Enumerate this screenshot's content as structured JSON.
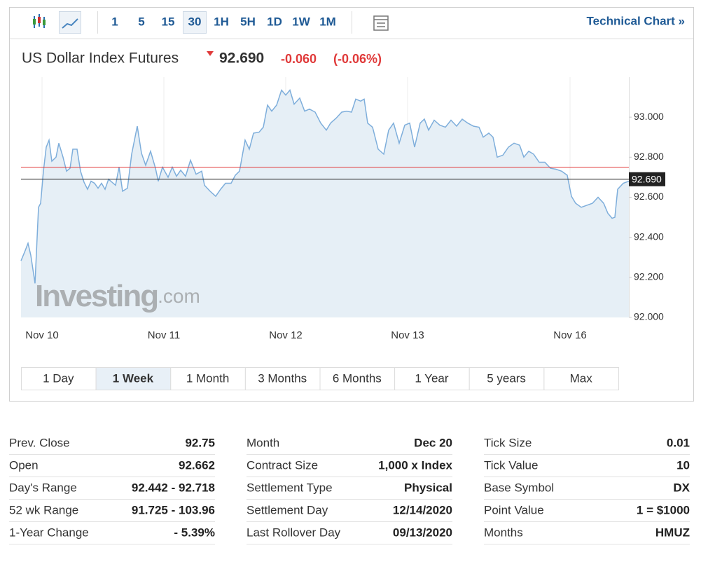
{
  "toolbar": {
    "intervals": [
      "1",
      "5",
      "15",
      "30",
      "1H",
      "5H",
      "1D",
      "1W",
      "1M"
    ],
    "active": 3,
    "link": "Technical Chart »"
  },
  "header": {
    "title": "US Dollar Index Futures",
    "price": "92.690",
    "change": "-0.060",
    "change_pct": "(-0.06%)"
  },
  "watermark": {
    "brand": "Investing",
    "suffix": ".com"
  },
  "chart_data": {
    "type": "line",
    "color": "#7eaedb",
    "fill": "#e6eff6",
    "x": [
      0,
      5,
      10,
      14,
      20,
      25,
      28,
      32,
      36,
      40,
      44,
      50,
      54,
      60,
      65,
      70,
      74,
      80,
      85,
      90,
      95,
      100,
      105,
      110,
      115,
      120,
      125,
      130,
      135,
      140,
      145,
      152,
      158,
      166,
      172,
      178,
      185,
      192,
      196,
      202,
      210,
      216,
      222,
      228,
      235,
      242,
      250,
      258,
      262,
      270,
      278,
      285,
      292,
      300,
      306,
      312,
      320,
      326,
      332,
      340,
      346,
      352,
      358,
      365,
      372,
      378,
      384,
      390,
      398,
      405,
      412,
      420,
      428,
      436,
      442,
      450,
      458,
      465,
      472,
      478,
      485,
      490,
      495,
      502,
      510,
      518,
      525,
      532,
      540,
      548,
      555,
      562,
      570,
      576,
      582,
      590,
      598,
      606,
      614,
      622,
      630,
      638,
      646,
      654,
      660,
      668,
      674,
      680,
      688,
      696,
      704,
      712,
      718,
      725,
      732,
      740,
      748,
      756,
      764,
      772,
      780,
      786,
      792,
      800,
      808,
      816,
      824,
      832,
      838,
      844,
      848,
      852,
      860,
      868
    ],
    "series": [
      {
        "values": [
          92.283,
          92.325,
          92.37,
          92.31,
          92.17,
          92.55,
          92.57,
          92.73,
          92.85,
          92.885,
          92.78,
          92.8,
          92.87,
          92.8,
          92.73,
          92.745,
          92.84,
          92.84,
          92.73,
          92.675,
          92.64,
          92.68,
          92.67,
          92.645,
          92.67,
          92.64,
          92.69,
          92.675,
          92.66,
          92.75,
          92.63,
          92.645,
          92.815,
          92.955,
          92.82,
          92.76,
          92.83,
          92.745,
          92.68,
          92.75,
          92.7,
          92.75,
          92.705,
          92.735,
          92.705,
          92.785,
          92.715,
          92.73,
          92.66,
          92.63,
          92.605,
          92.64,
          92.67,
          92.67,
          92.71,
          92.73,
          92.885,
          92.84,
          92.92,
          92.925,
          92.95,
          93.06,
          93.03,
          93.06,
          93.135,
          93.11,
          93.135,
          93.065,
          93.095,
          93.03,
          93.04,
          93.025,
          92.97,
          92.935,
          92.97,
          92.995,
          93.025,
          93.03,
          93.025,
          93.09,
          93.08,
          93.09,
          92.97,
          92.95,
          92.84,
          92.815,
          92.935,
          92.97,
          92.87,
          92.96,
          92.97,
          92.85,
          92.97,
          92.99,
          92.935,
          92.985,
          92.96,
          92.95,
          92.985,
          92.955,
          92.99,
          92.97,
          92.955,
          92.95,
          92.9,
          92.92,
          92.9,
          92.8,
          92.81,
          92.85,
          92.87,
          92.86,
          92.8,
          92.83,
          92.815,
          92.775,
          92.775,
          92.745,
          92.74,
          92.73,
          92.71,
          92.605,
          92.57,
          92.55,
          92.56,
          92.57,
          92.6,
          92.57,
          92.52,
          92.495,
          92.5,
          92.64,
          92.67,
          92.68
        ]
      }
    ],
    "xlim": [
      0,
      868
    ],
    "xticks": [
      {
        "value": 30,
        "label": "Nov 10"
      },
      {
        "value": 204,
        "label": "Nov 11"
      },
      {
        "value": 378,
        "label": "Nov 12"
      },
      {
        "value": 552,
        "label": "Nov 13"
      },
      {
        "value": 784,
        "label": "Nov 16"
      }
    ],
    "ylim": [
      92,
      93.2
    ],
    "yticks": [
      {
        "value": 92,
        "label": "92.000"
      },
      {
        "value": 92.2,
        "label": "92.200"
      },
      {
        "value": 92.4,
        "label": "92.400"
      },
      {
        "value": 92.6,
        "label": "92.600"
      },
      {
        "value": 92.8,
        "label": "92.800"
      },
      {
        "value": 93,
        "label": "93.000"
      }
    ],
    "prev_close_line": {
      "value": 92.75,
      "color": "#e03a3a"
    },
    "last_price": {
      "value": 92.69,
      "label": "92.690",
      "color": "#222222"
    }
  },
  "ranges": {
    "items": [
      "1 Day",
      "1 Week",
      "1 Month",
      "3 Months",
      "6 Months",
      "1 Year",
      "5 years",
      "Max"
    ],
    "active": 1
  },
  "stats": [
    [
      [
        "Prev. Close",
        "92.75"
      ],
      [
        "Open",
        "92.662"
      ],
      [
        "Day's Range",
        "92.442 - 92.718"
      ],
      [
        "52 wk Range",
        "91.725 - 103.96"
      ],
      [
        "1-Year Change",
        "- 5.39%"
      ]
    ],
    [
      [
        "Month",
        "Dec 20"
      ],
      [
        "Contract Size",
        "1,000 x Index"
      ],
      [
        "Settlement Type",
        "Physical"
      ],
      [
        "Settlement Day",
        "12/14/2020"
      ],
      [
        "Last Rollover Day",
        "09/13/2020"
      ]
    ],
    [
      [
        "Tick Size",
        "0.01"
      ],
      [
        "Tick Value",
        "10"
      ],
      [
        "Base Symbol",
        "DX"
      ],
      [
        "Point Value",
        "1 = $1000"
      ],
      [
        "Months",
        "HMUZ"
      ]
    ]
  ]
}
